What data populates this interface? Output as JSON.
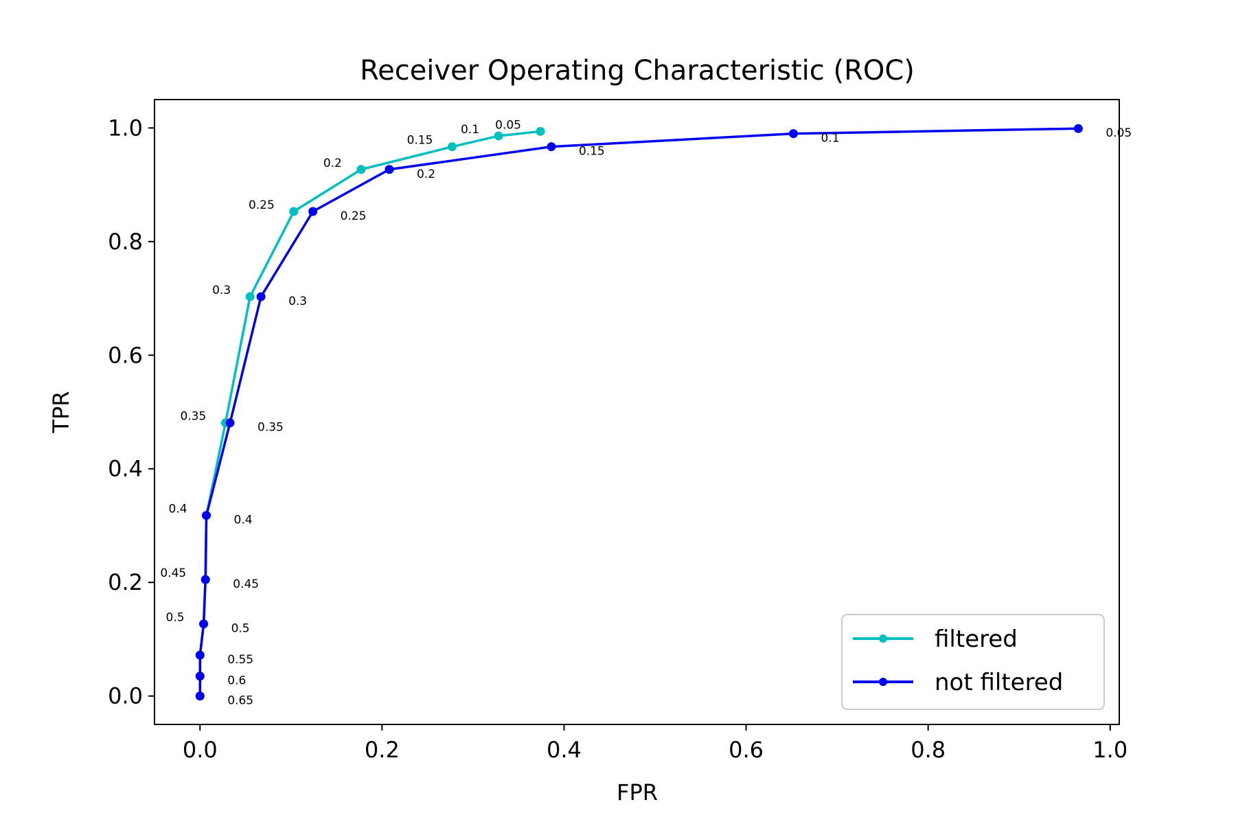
{
  "chart_data": {
    "type": "line",
    "title": "Receiver Operating Characteristic (ROC)",
    "xlabel": "FPR",
    "ylabel": "TPR",
    "xlim": [
      -0.05,
      1.01
    ],
    "ylim": [
      -0.05,
      1.05
    ],
    "xticks": [
      0.0,
      0.2,
      0.4,
      0.6,
      0.8,
      1.0
    ],
    "xtick_labels": [
      "0.0",
      "0.2",
      "0.4",
      "0.6",
      "0.8",
      "1.0"
    ],
    "yticks": [
      0.0,
      0.2,
      0.4,
      0.6,
      0.8,
      1.0
    ],
    "ytick_labels": [
      "0.0",
      "0.2",
      "0.4",
      "0.6",
      "0.8",
      "1.0"
    ],
    "grid": false,
    "legend_position": "lower-right",
    "series": [
      {
        "name": "filtered",
        "color": "#00bfbf",
        "points": [
          {
            "x": 0.0,
            "y": 0.0,
            "label": ""
          },
          {
            "x": 0.0,
            "y": 0.035,
            "label": ""
          },
          {
            "x": 0.0,
            "y": 0.072,
            "label": ""
          },
          {
            "x": 0.004,
            "y": 0.127,
            "label": ""
          },
          {
            "x": 0.006,
            "y": 0.205,
            "label": ""
          },
          {
            "x": 0.007,
            "y": 0.318,
            "label": ""
          },
          {
            "x": 0.028,
            "y": 0.481,
            "label": "0.35"
          },
          {
            "x": 0.055,
            "y": 0.703,
            "label": "0.3"
          },
          {
            "x": 0.103,
            "y": 0.853,
            "label": "0.25"
          },
          {
            "x": 0.177,
            "y": 0.927,
            "label": "0.2"
          },
          {
            "x": 0.277,
            "y": 0.967,
            "label": "0.15"
          },
          {
            "x": 0.328,
            "y": 0.986,
            "label": "0.1"
          },
          {
            "x": 0.374,
            "y": 0.994,
            "label": "0.05"
          }
        ],
        "extra_labels": [
          {
            "x": 0.007,
            "y": 0.318,
            "label": "0.4"
          },
          {
            "x": 0.006,
            "y": 0.205,
            "label": "0.45"
          },
          {
            "x": 0.004,
            "y": 0.127,
            "label": "0.5"
          }
        ]
      },
      {
        "name": "not filtered",
        "color": "#0000ee",
        "points": [
          {
            "x": 0.0,
            "y": 0.0,
            "label": "0.65"
          },
          {
            "x": 0.0,
            "y": 0.035,
            "label": "0.6"
          },
          {
            "x": 0.0,
            "y": 0.072,
            "label": "0.55"
          },
          {
            "x": 0.004,
            "y": 0.127,
            "label": "0.5"
          },
          {
            "x": 0.006,
            "y": 0.205,
            "label": "0.45"
          },
          {
            "x": 0.007,
            "y": 0.318,
            "label": "0.4"
          },
          {
            "x": 0.033,
            "y": 0.481,
            "label": "0.35"
          },
          {
            "x": 0.067,
            "y": 0.703,
            "label": "0.3"
          },
          {
            "x": 0.124,
            "y": 0.853,
            "label": "0.25"
          },
          {
            "x": 0.208,
            "y": 0.927,
            "label": "0.2"
          },
          {
            "x": 0.386,
            "y": 0.967,
            "label": "0.15"
          },
          {
            "x": 0.652,
            "y": 0.99,
            "label": "0.1"
          },
          {
            "x": 0.965,
            "y": 0.999,
            "label": "0.05"
          }
        ]
      }
    ]
  }
}
